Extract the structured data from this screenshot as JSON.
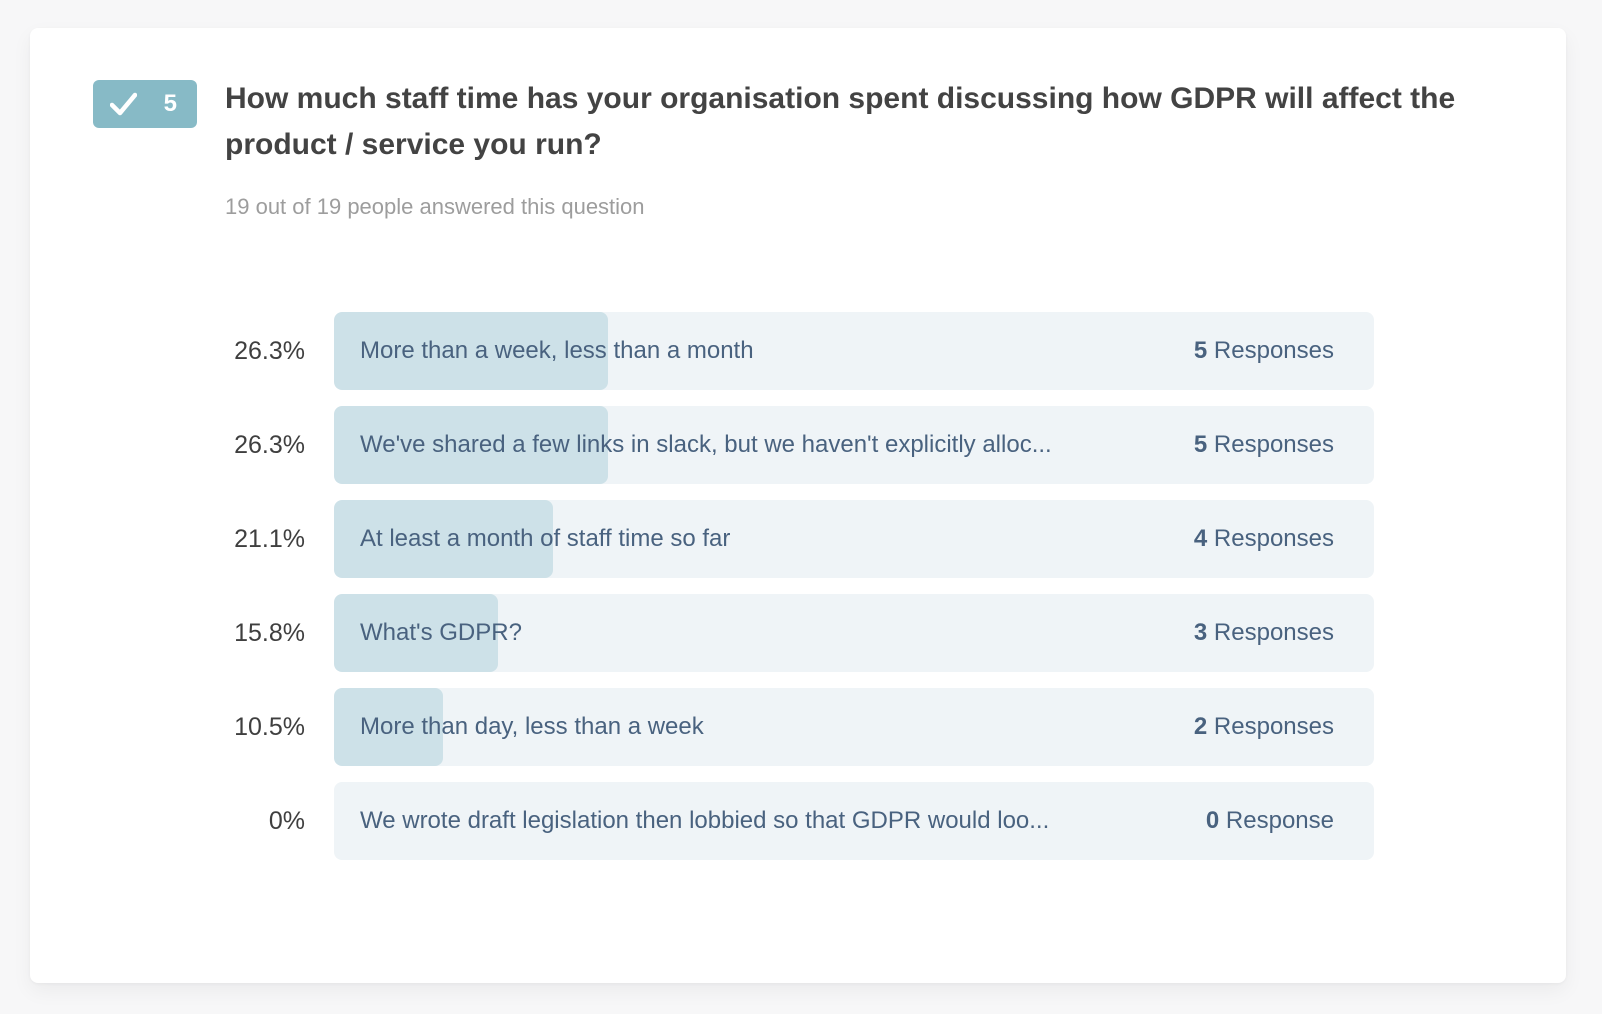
{
  "question": {
    "number": "5",
    "badge_color": "#87bac6",
    "title": "How much staff time has your organisation spent discussing how GDPR will affect the product / service you run?",
    "subtitle": "19 out of 19 people answered this question"
  },
  "chart_data": {
    "type": "bar",
    "orientation": "horizontal",
    "title": "How much staff time has your organisation spent discussing how GDPR will affect the product / service you run?",
    "subtitle": "19 out of 19 people answered this question",
    "total_answered": 19,
    "total_people": 19,
    "xlim_percent": [
      0,
      100
    ],
    "grid": false,
    "legend": false,
    "categories": [
      "More than a week, less than a month",
      "We've shared a few links in slack, but we haven't explicitly alloc...",
      "At least a month of staff time so far",
      "What's GDPR?",
      "More than day, less than a week",
      "We wrote draft legislation then lobbied so that GDPR would loo..."
    ],
    "values_percent": [
      26.3,
      26.3,
      21.1,
      15.8,
      10.5,
      0
    ],
    "values_count": [
      5,
      5,
      4,
      3,
      2,
      0
    ],
    "colors": {
      "bar_fill": "#cde1e8",
      "bar_track": "#eff4f7",
      "answer_text": "#49627f",
      "percent_text": "#3f3f3f"
    },
    "rows": [
      {
        "percent_label": "26.3%",
        "percent": 26.3,
        "answer": "More than a week, less than a month",
        "count": "5",
        "responses_word": "Responses"
      },
      {
        "percent_label": "26.3%",
        "percent": 26.3,
        "answer": "We've shared a few links in slack, but we haven't explicitly alloc...",
        "count": "5",
        "responses_word": "Responses"
      },
      {
        "percent_label": "21.1%",
        "percent": 21.1,
        "answer": "At least a month of staff time so far",
        "count": "4",
        "responses_word": "Responses"
      },
      {
        "percent_label": "15.8%",
        "percent": 15.8,
        "answer": "What's GDPR?",
        "count": "3",
        "responses_word": "Responses"
      },
      {
        "percent_label": "10.5%",
        "percent": 10.5,
        "answer": "More than day, less than a week",
        "count": "2",
        "responses_word": "Responses"
      },
      {
        "percent_label": "0%",
        "percent": 0,
        "answer": "We wrote draft legislation then lobbied so that GDPR would loo...",
        "count": "0",
        "responses_word": "Response"
      }
    ]
  }
}
